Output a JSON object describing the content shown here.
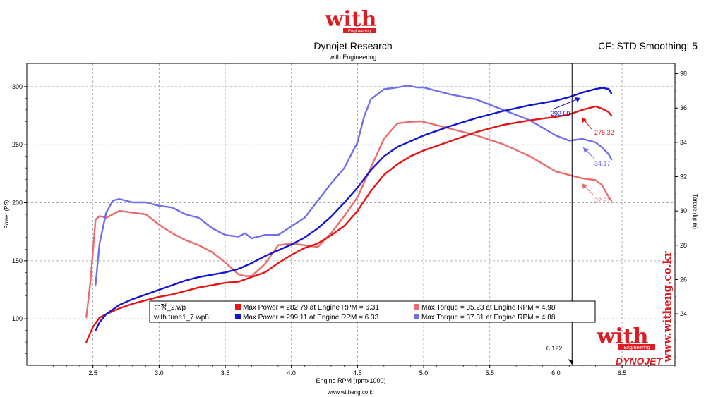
{
  "header": {
    "brand_logo": "with",
    "brand_logo_sub": "Engineering",
    "title": "Dynojet Research",
    "subtitle": "with Engineering",
    "correction": "CF: STD Smoothing: 5"
  },
  "footer": {
    "url": "www.witheng.co.kr"
  },
  "watermark": {
    "vertical_url": "www.witheng.co.kr",
    "logo": "with",
    "logo_sub": "Engineering",
    "dynojet": "DYNOJET"
  },
  "colors": {
    "run1_power": "#e81414",
    "run1_torque": "#ec6b6b",
    "run2_power": "#1414d4",
    "run2_torque": "#6f6ff0",
    "brand_red": "#dd1b22"
  },
  "chart_data": {
    "type": "line",
    "title": "Dynojet Research",
    "xlabel": "Engine RPM (rpmx1000)",
    "ylabel": "Power (PS)",
    "y2label": "Torque (kg·m)",
    "xlim": [
      2.0,
      6.9
    ],
    "ylim": [
      60,
      320
    ],
    "y2lim": [
      21,
      38.6
    ],
    "x_ticks": [
      "2.5",
      "3.0",
      "3.5",
      "4.0",
      "4.5",
      "5.0",
      "5.5",
      "6.0",
      "6.5"
    ],
    "y_ticks": [
      "100",
      "150",
      "200",
      "250",
      "300"
    ],
    "y2_ticks": [
      "24",
      "26",
      "28",
      "30",
      "32",
      "34",
      "36",
      "38"
    ],
    "grid": true,
    "cursor": {
      "x": 6.122,
      "label": "6.122"
    },
    "legend": {
      "position": "bottom-center",
      "rows": [
        {
          "file": "순정_2.wp",
          "power": "Max Power = 282.79 at Engine RPM = 6.31",
          "torque": "Max Torque = 35.23 at Engine RPM = 4.98"
        },
        {
          "file": "with tune1_7.wp8",
          "power": "Max Power = 299.11 at Engine RPM = 6.33",
          "torque": "Max Torque = 37.31 at Engine RPM = 4.88"
        }
      ]
    },
    "cursor_values": [
      {
        "series": "with tune1_7 Power",
        "value": "292.09"
      },
      {
        "series": "순정_2 Power",
        "value": "275.32"
      },
      {
        "series": "with tune1_7 Torque",
        "value": "34.17"
      },
      {
        "series": "순정_2 Torque",
        "value": "32.21"
      }
    ],
    "series": [
      {
        "name": "순정_2.wp",
        "measure": "power",
        "axis": "left",
        "x": [
          2.45,
          2.5,
          2.55,
          2.6,
          2.7,
          2.8,
          2.9,
          3.0,
          3.1,
          3.2,
          3.3,
          3.4,
          3.5,
          3.6,
          3.7,
          3.8,
          3.9,
          4.0,
          4.1,
          4.2,
          4.3,
          4.4,
          4.5,
          4.6,
          4.7,
          4.8,
          4.9,
          5.0,
          5.2,
          5.4,
          5.6,
          5.8,
          6.0,
          6.1,
          6.2,
          6.3,
          6.35,
          6.4,
          6.42
        ],
        "y": [
          80,
          93,
          101,
          104,
          109,
          113,
          116,
          119,
          121,
          124,
          127,
          129,
          131,
          132,
          136,
          140,
          148,
          155,
          161,
          165,
          172,
          180,
          193,
          210,
          224,
          233,
          240,
          245,
          253,
          261,
          267,
          271,
          274,
          276,
          280,
          283,
          281,
          278,
          275
        ]
      },
      {
        "name": "with tune1_7.wp8",
        "measure": "power",
        "axis": "left",
        "x": [
          2.52,
          2.55,
          2.6,
          2.7,
          2.8,
          2.9,
          3.0,
          3.1,
          3.2,
          3.3,
          3.4,
          3.5,
          3.6,
          3.7,
          3.8,
          3.9,
          4.0,
          4.1,
          4.2,
          4.3,
          4.4,
          4.5,
          4.6,
          4.7,
          4.8,
          4.9,
          5.0,
          5.2,
          5.4,
          5.6,
          5.8,
          6.0,
          6.1,
          6.2,
          6.3,
          6.35,
          6.4,
          6.42
        ],
        "y": [
          90,
          97,
          104,
          112,
          117,
          121,
          125,
          129,
          133,
          136,
          138,
          140,
          143,
          148,
          154,
          159,
          164,
          170,
          178,
          188,
          200,
          213,
          228,
          240,
          248,
          253,
          258,
          266,
          273,
          279,
          284,
          288,
          291,
          295,
          298,
          299,
          298,
          294
        ]
      },
      {
        "name": "순정_2.wp",
        "measure": "torque",
        "axis": "right",
        "x": [
          2.45,
          2.48,
          2.52,
          2.55,
          2.6,
          2.65,
          2.7,
          2.8,
          2.9,
          3.0,
          3.1,
          3.2,
          3.3,
          3.4,
          3.5,
          3.6,
          3.65,
          3.7,
          3.8,
          3.9,
          4.0,
          4.1,
          4.2,
          4.3,
          4.4,
          4.5,
          4.6,
          4.7,
          4.8,
          4.9,
          4.98,
          5.1,
          5.2,
          5.4,
          5.6,
          5.8,
          6.0,
          6.1,
          6.2,
          6.3,
          6.35,
          6.4,
          6.42
        ],
        "y": [
          23.8,
          25.8,
          29.5,
          29.7,
          29.6,
          29.8,
          30.0,
          29.9,
          29.8,
          29.2,
          28.7,
          28.3,
          28.0,
          27.6,
          27.0,
          26.3,
          26.2,
          26.2,
          26.9,
          28.0,
          28.1,
          28.0,
          27.9,
          28.7,
          29.7,
          30.8,
          32.5,
          34.2,
          35.1,
          35.2,
          35.23,
          35.0,
          34.8,
          34.4,
          33.9,
          33.2,
          32.3,
          32.1,
          31.9,
          31.8,
          31.5,
          30.8,
          30.6
        ]
      },
      {
        "name": "with tune1_7.wp8",
        "measure": "torque",
        "axis": "right",
        "x": [
          2.52,
          2.55,
          2.6,
          2.65,
          2.7,
          2.8,
          2.9,
          3.0,
          3.1,
          3.2,
          3.3,
          3.4,
          3.5,
          3.6,
          3.65,
          3.7,
          3.8,
          3.9,
          4.0,
          4.1,
          4.2,
          4.3,
          4.4,
          4.5,
          4.55,
          4.6,
          4.7,
          4.8,
          4.88,
          4.95,
          5.0,
          5.2,
          5.4,
          5.6,
          5.8,
          6.0,
          6.1,
          6.2,
          6.3,
          6.35,
          6.4,
          6.42
        ],
        "y": [
          25.7,
          28.1,
          29.9,
          30.6,
          30.7,
          30.5,
          30.5,
          30.3,
          30.2,
          29.8,
          29.6,
          29.0,
          28.6,
          28.5,
          28.7,
          28.4,
          28.6,
          28.6,
          29.1,
          29.6,
          30.6,
          31.6,
          32.5,
          34.0,
          35.5,
          36.5,
          37.1,
          37.2,
          37.31,
          37.2,
          37.2,
          36.8,
          36.5,
          35.9,
          35.3,
          34.4,
          34.1,
          34.2,
          34.0,
          33.7,
          33.3,
          33.0
        ]
      }
    ]
  }
}
